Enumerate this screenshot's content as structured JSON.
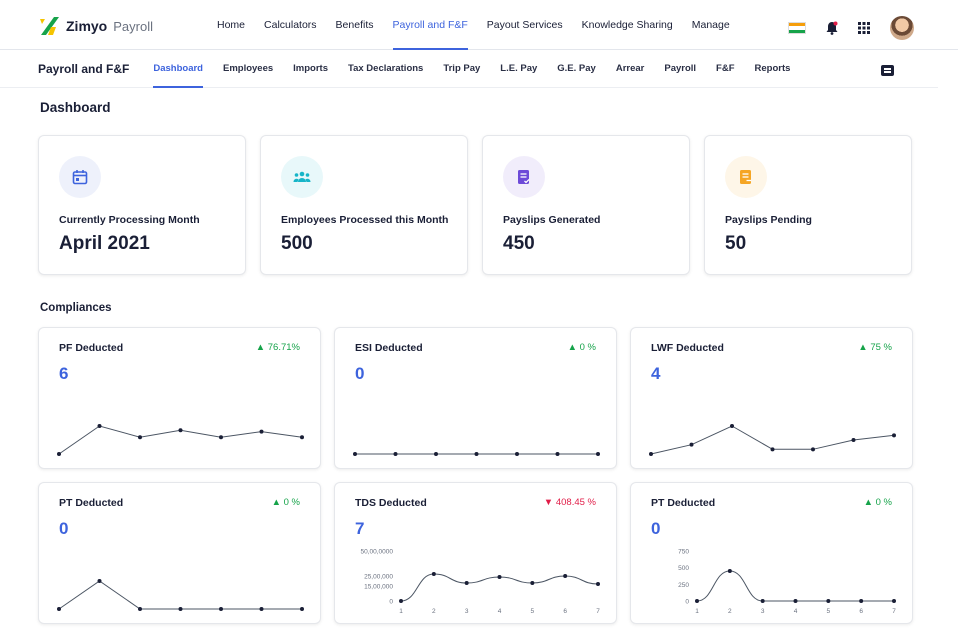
{
  "app": {
    "brand": "Zimyo",
    "product": "Payroll"
  },
  "topnav": [
    {
      "label": "Home"
    },
    {
      "label": "Calculators"
    },
    {
      "label": "Benefits"
    },
    {
      "label": "Payroll and F&F",
      "active": true
    },
    {
      "label": "Payout Services"
    },
    {
      "label": "Knowledge Sharing"
    },
    {
      "label": "Manage"
    }
  ],
  "subnav": {
    "title": "Payroll and F&F",
    "items": [
      {
        "label": "Dashboard",
        "active": true
      },
      {
        "label": "Employees"
      },
      {
        "label": "Imports"
      },
      {
        "label": "Tax Declarations"
      },
      {
        "label": "Trip Pay"
      },
      {
        "label": "L.E. Pay"
      },
      {
        "label": "G.E. Pay"
      },
      {
        "label": "Arrear"
      },
      {
        "label": "Payroll"
      },
      {
        "label": "F&F"
      },
      {
        "label": "Reports"
      }
    ]
  },
  "page": {
    "title": "Dashboard"
  },
  "stats": [
    {
      "label": "Currently Processing Month",
      "value": "April 2021",
      "icon": "calendar-icon",
      "color": "#3d63dd",
      "bg": "#eef1fb"
    },
    {
      "label": "Employees Processed this Month",
      "value": "500",
      "icon": "group-icon",
      "color": "#17b5c8",
      "bg": "#e8f8fa"
    },
    {
      "label": "Payslips Generated",
      "value": "450",
      "icon": "document-check-icon",
      "color": "#6d4ad8",
      "bg": "#f1edfb"
    },
    {
      "label": "Payslips Pending",
      "value": "50",
      "icon": "document-pending-icon",
      "color": "#f5a524",
      "bg": "#fef6e8"
    }
  ],
  "compliances_title": "Compliances",
  "colors": {
    "up": "#16a34a",
    "down": "#e11d48",
    "accent": "#3d63dd",
    "line": "#4b5563"
  },
  "chart_data": [
    {
      "type": "line",
      "title": "PF Deducted",
      "value": "6",
      "delta": "76.71%",
      "trend": "up",
      "x": [
        1,
        2,
        3,
        4,
        5,
        6,
        7
      ],
      "values": [
        1,
        3,
        2.2,
        2.7,
        2.2,
        2.6,
        2.2
      ]
    },
    {
      "type": "line",
      "title": "ESI Deducted",
      "value": "0",
      "delta": "0 %",
      "trend": "up",
      "x": [
        1,
        2,
        3,
        4,
        5,
        6,
        7
      ],
      "values": [
        0,
        0,
        0,
        0,
        0,
        0,
        0
      ]
    },
    {
      "type": "line",
      "title": "LWF Deducted",
      "value": "4",
      "delta": "75 %",
      "trend": "up",
      "x": [
        1,
        2,
        3,
        4,
        5,
        6,
        7
      ],
      "values": [
        1,
        2,
        4,
        1.5,
        1.5,
        2.5,
        3
      ]
    },
    {
      "type": "line",
      "title": "PT Deducted",
      "value": "0",
      "delta": "0 %",
      "trend": "up",
      "x": [
        1,
        2,
        3,
        4,
        5,
        6,
        7
      ],
      "values": [
        0,
        1,
        0,
        0,
        0,
        0,
        0
      ]
    },
    {
      "type": "line",
      "title": "TDS Deducted",
      "value": "7",
      "delta": "408.45 %",
      "trend": "down",
      "x": [
        1,
        2,
        3,
        4,
        5,
        6,
        7
      ],
      "values": [
        0,
        2700000,
        1800000,
        2400000,
        1800000,
        2500000,
        1700000
      ],
      "yticks": [
        "50,00,0000",
        "25,00,000",
        "15,00,000",
        "0"
      ],
      "ytick_values": [
        5000000,
        2500000,
        1500000,
        0
      ]
    },
    {
      "type": "line",
      "title": "PT Deducted",
      "value": "0",
      "delta": "0 %",
      "trend": "up",
      "x": [
        1,
        2,
        3,
        4,
        5,
        6,
        7
      ],
      "values": [
        0,
        450,
        0,
        0,
        0,
        0,
        0
      ],
      "yticks": [
        "750",
        "500",
        "250",
        "0"
      ],
      "ytick_values": [
        750,
        500,
        250,
        0
      ]
    }
  ]
}
